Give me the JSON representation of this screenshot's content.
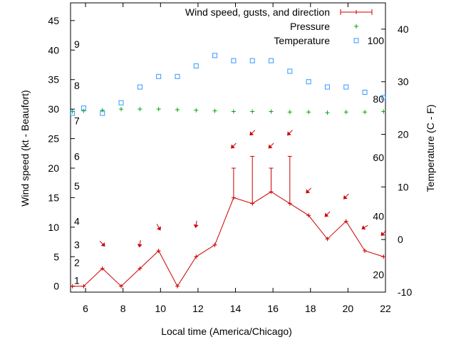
{
  "chart_data": {
    "type": "line",
    "xlabel": "Local time (America/Chicago)",
    "ylabel_left": "Wind speed (kt - Beaufort)",
    "ylabel_right": "Temperature (C - F)",
    "xlim": [
      5.2,
      22
    ],
    "ylim_left": [
      -1,
      48
    ],
    "ylim_right": [
      -10,
      45
    ],
    "x_ticks": [
      6,
      8,
      10,
      12,
      14,
      16,
      18,
      20,
      22
    ],
    "y_ticks_left": [
      0,
      5,
      10,
      15,
      20,
      25,
      30,
      35,
      40,
      45
    ],
    "y_ticks_right": [
      -10,
      0,
      10,
      20,
      30,
      40
    ],
    "beaufort_labels": [
      {
        "label": "1",
        "kt": 1
      },
      {
        "label": "2",
        "kt": 4
      },
      {
        "label": "3",
        "kt": 7
      },
      {
        "label": "4",
        "kt": 11
      },
      {
        "label": "5",
        "kt": 17
      },
      {
        "label": "6",
        "kt": 22
      },
      {
        "label": "7",
        "kt": 28
      },
      {
        "label": "8",
        "kt": 34
      },
      {
        "label": "9",
        "kt": 41
      }
    ],
    "fahrenheit_labels": [
      {
        "label": "20",
        "c": -6.7
      },
      {
        "label": "40",
        "c": 4.4
      },
      {
        "label": "60",
        "c": 15.6
      },
      {
        "label": "80",
        "c": 26.7
      },
      {
        "label": "100",
        "c": 37.8
      }
    ],
    "legend": {
      "position": "top-right"
    },
    "series": [
      {
        "name": "Wind speed, gusts, and direction",
        "color": "#cc0000",
        "style": "line-errorbar",
        "x": [
          5.3,
          5.9,
          6.9,
          7.9,
          8.9,
          9.9,
          10.9,
          11.9,
          12.9,
          13.9,
          14.9,
          15.9,
          16.9,
          17.9,
          18.9,
          19.9,
          20.9,
          21.9
        ],
        "values": [
          0,
          0,
          3,
          0,
          3,
          6,
          0,
          5,
          7,
          15,
          14,
          16,
          14,
          12,
          8,
          11,
          6,
          5
        ],
        "gusts": [
          null,
          null,
          null,
          null,
          null,
          null,
          null,
          null,
          null,
          20,
          22,
          20,
          22,
          null,
          null,
          null,
          null,
          null
        ]
      },
      {
        "name": "Pressure",
        "color": "#00aa00",
        "style": "plus",
        "axis": "left",
        "x": [
          5.3,
          5.9,
          6.9,
          7.9,
          8.9,
          9.9,
          10.9,
          11.9,
          12.9,
          13.9,
          14.9,
          15.9,
          16.9,
          17.9,
          18.9,
          19.9,
          20.9,
          21.9
        ],
        "values": [
          29.6,
          29.7,
          29.8,
          30.0,
          30.0,
          30.0,
          29.9,
          29.8,
          29.7,
          29.6,
          29.6,
          29.6,
          29.5,
          29.5,
          29.4,
          29.5,
          29.5,
          29.6
        ]
      },
      {
        "name": "Temperature",
        "color": "#3399ff",
        "style": "square",
        "axis": "right",
        "x": [
          5.3,
          5.9,
          6.9,
          7.9,
          8.9,
          9.9,
          10.9,
          11.9,
          12.9,
          13.9,
          14.9,
          15.9,
          16.9,
          17.9,
          18.9,
          19.9,
          20.9,
          21.9
        ],
        "values": [
          24,
          25,
          24,
          26,
          29,
          31,
          31,
          33,
          35,
          34,
          34,
          34,
          32,
          30,
          29,
          29,
          28,
          27
        ]
      }
    ],
    "wind_direction_arrows": [
      {
        "x": 6.9,
        "kt": 7.2,
        "dir_deg": 315
      },
      {
        "x": 8.9,
        "kt": 7.2,
        "dir_deg": 10
      },
      {
        "x": 9.9,
        "kt": 10.0,
        "dir_deg": 330
      },
      {
        "x": 11.9,
        "kt": 10.5,
        "dir_deg": 10
      },
      {
        "x": 13.9,
        "kt": 23.8,
        "dir_deg": 45
      },
      {
        "x": 14.9,
        "kt": 26.0,
        "dir_deg": 45
      },
      {
        "x": 15.9,
        "kt": 23.8,
        "dir_deg": 45
      },
      {
        "x": 16.9,
        "kt": 26.0,
        "dir_deg": 45
      },
      {
        "x": 17.9,
        "kt": 16.2,
        "dir_deg": 45
      },
      {
        "x": 18.9,
        "kt": 12.2,
        "dir_deg": 45
      },
      {
        "x": 19.9,
        "kt": 15.2,
        "dir_deg": 45
      },
      {
        "x": 20.9,
        "kt": 10.0,
        "dir_deg": 60
      },
      {
        "x": 21.9,
        "kt": 9.0,
        "dir_deg": 45
      }
    ]
  }
}
